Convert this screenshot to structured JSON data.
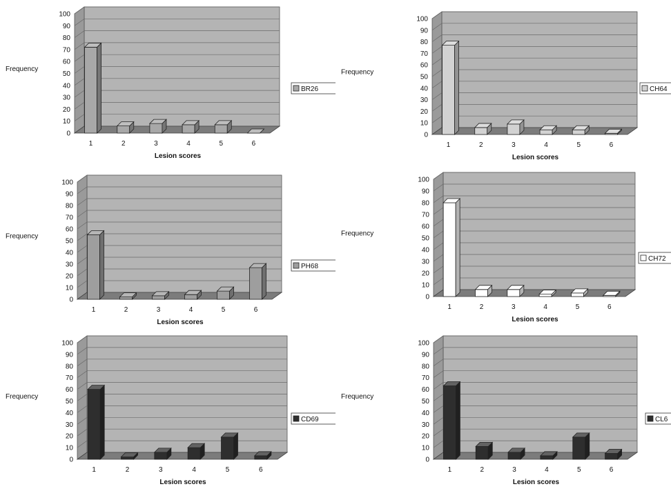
{
  "chart_data": [
    {
      "type": "bar",
      "xlabel": "Lesion scores",
      "ylabel": "Frequency",
      "categories": [
        "1",
        "2",
        "3",
        "4",
        "5",
        "6"
      ],
      "ylim": [
        0,
        100
      ],
      "yticks": [
        "0",
        "10",
        "20",
        "30",
        "40",
        "50",
        "60",
        "70",
        "80",
        "90",
        "100"
      ],
      "grid": true,
      "legend_position": "right",
      "series": [
        {
          "name": "BR26",
          "values": [
            72,
            6,
            8,
            7,
            7,
            0
          ],
          "color": "#a8a8a8"
        }
      ]
    },
    {
      "type": "bar",
      "xlabel": "Lesion scores",
      "ylabel": "Frequency",
      "categories": [
        "1",
        "2",
        "3",
        "4",
        "5",
        "6"
      ],
      "ylim": [
        0,
        100
      ],
      "yticks": [
        "0",
        "10",
        "20",
        "30",
        "40",
        "50",
        "60",
        "70",
        "80",
        "90",
        "100"
      ],
      "grid": true,
      "legend_position": "right",
      "series": [
        {
          "name": "CH64",
          "values": [
            77,
            6,
            9,
            4,
            4,
            1
          ],
          "color": "#d2d2d2"
        }
      ]
    },
    {
      "type": "bar",
      "xlabel": "Lesion scores",
      "ylabel": "Frequency",
      "categories": [
        "1",
        "2",
        "3",
        "4",
        "5",
        "6"
      ],
      "ylim": [
        0,
        100
      ],
      "yticks": [
        "0",
        "10",
        "20",
        "30",
        "40",
        "50",
        "60",
        "70",
        "80",
        "90",
        "100"
      ],
      "grid": true,
      "legend_position": "right",
      "series": [
        {
          "name": "PH68",
          "values": [
            55,
            2,
            3,
            4,
            7,
            27
          ],
          "color": "#9e9e9e"
        }
      ]
    },
    {
      "type": "bar",
      "xlabel": "Lesion scores",
      "ylabel": "Frequency",
      "categories": [
        "1",
        "2",
        "3",
        "4",
        "5",
        "6"
      ],
      "ylim": [
        0,
        100
      ],
      "yticks": [
        "0",
        "10",
        "20",
        "30",
        "40",
        "50",
        "60",
        "70",
        "80",
        "90",
        "100"
      ],
      "grid": true,
      "legend_position": "right",
      "series": [
        {
          "name": "CH72",
          "values": [
            80,
            6,
            6,
            2,
            3,
            1
          ],
          "color": "#ffffff"
        }
      ]
    },
    {
      "type": "bar",
      "xlabel": "Lesion scores",
      "ylabel": "Frequency",
      "categories": [
        "1",
        "2",
        "3",
        "4",
        "5",
        "6"
      ],
      "ylim": [
        0,
        100
      ],
      "yticks": [
        "0",
        "10",
        "20",
        "30",
        "40",
        "50",
        "60",
        "70",
        "80",
        "90",
        "100"
      ],
      "grid": true,
      "legend_position": "right",
      "series": [
        {
          "name": "CD69",
          "values": [
            60,
            2,
            6,
            10,
            19,
            3
          ],
          "color": "#2e2e2e"
        }
      ]
    },
    {
      "type": "bar",
      "xlabel": "Lesion scores",
      "ylabel": "Frequency",
      "categories": [
        "1",
        "2",
        "3",
        "4",
        "5",
        "6"
      ],
      "ylim": [
        0,
        100
      ],
      "yticks": [
        "0",
        "10",
        "20",
        "30",
        "40",
        "50",
        "60",
        "70",
        "80",
        "90",
        "100"
      ],
      "grid": true,
      "legend_position": "right",
      "series": [
        {
          "name": "CL6",
          "values": [
            63,
            11,
            6,
            3,
            19,
            5
          ],
          "color": "#2e2e2e"
        }
      ]
    }
  ]
}
